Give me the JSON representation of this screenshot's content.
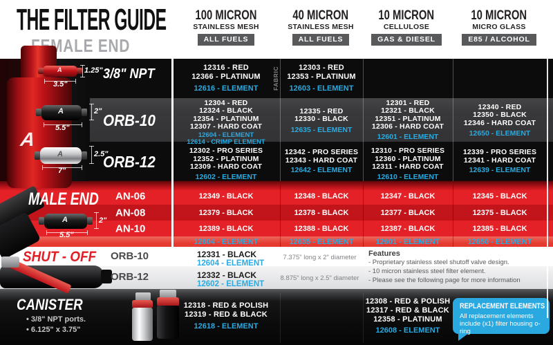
{
  "header": {
    "title": "THE FILTER GUIDE",
    "subtitle": "FEMALE END",
    "columns": [
      {
        "line1": "100 MICRON",
        "line2": "STAINLESS MESH",
        "badge": "ALL FUELS"
      },
      {
        "line1": "40 MICRON",
        "line2": "STAINLESS MESH",
        "badge": "ALL FUELS"
      },
      {
        "line1": "10 MICRON",
        "line2": "CELLULOSE",
        "badge": "GAS & DIESEL"
      },
      {
        "line1": "10 MICRON",
        "line2": "MICRO GLASS",
        "badge": "E85 / ALCOHOL"
      }
    ]
  },
  "female_rows": [
    {
      "label": "3/8\" NPT",
      "dim_d": "1.25\"",
      "dim_l": "3.5\"",
      "cells": [
        {
          "note": "",
          "parts": [
            "12316 - RED",
            "12366 - PLATINUM"
          ],
          "elements": [
            "12616 - ELEMENT"
          ]
        },
        {
          "note": "FABRIC",
          "parts": [
            "12303 - RED",
            "12353 - PLATINUM"
          ],
          "elements": [
            "12603 - ELEMENT"
          ]
        },
        {
          "note": "",
          "parts": [],
          "elements": []
        },
        {
          "note": "",
          "parts": [],
          "elements": []
        }
      ]
    },
    {
      "label": "ORB-10",
      "dim_d": "2\"",
      "dim_l": "5.5\"",
      "cells": [
        {
          "note": "",
          "parts": [
            "12304 - RED",
            "12324 - BLACK",
            "12354 - PLATINUM",
            "12307 - HARD COAT"
          ],
          "elements": [
            "12604 - ELEMENT",
            "12614 - CRIMP ELEMENT"
          ]
        },
        {
          "note": "",
          "parts": [
            "12335 - RED",
            "12330 - BLACK"
          ],
          "elements": [
            "12635 - ELEMENT"
          ]
        },
        {
          "note": "",
          "parts": [
            "12301 - RED",
            "12321 - BLACK",
            "12351 - PLATINUM",
            "12306 - HARD COAT"
          ],
          "elements": [
            "12601 - ELEMENT"
          ]
        },
        {
          "note": "",
          "parts": [
            "12340 - RED",
            "12350 - BLACK",
            "12346 - HARD COAT"
          ],
          "elements": [
            "12650 - ELEMENT"
          ]
        }
      ]
    },
    {
      "label": "ORB-12",
      "dim_d": "2.5\"",
      "dim_l": "7\"",
      "cells": [
        {
          "note": "",
          "parts": [
            "12302 - PRO SERIES",
            "12352 - PLATINUM",
            "12309 - HARD COAT"
          ],
          "elements": [
            "12602 - ELEMENT"
          ]
        },
        {
          "note": "",
          "parts": [
            "12342 - PRO SERIES",
            "12343 - HARD COAT"
          ],
          "elements": [
            "12642 - ELEMENT"
          ]
        },
        {
          "note": "",
          "parts": [
            "12310 - PRO SERIES",
            "12360 - PLATINUM",
            "12311 - HARD COAT"
          ],
          "elements": [
            "12610 - ELEMENT"
          ]
        },
        {
          "note": "",
          "parts": [
            "12339 - PRO SERIES",
            "12341 - HARD COAT"
          ],
          "elements": [
            "12639 - ELEMENT"
          ]
        }
      ]
    }
  ],
  "male_end": {
    "title": "MALE END",
    "dim_d": "2\"",
    "dim_l": "5.5\"",
    "rows": [
      {
        "label": "AN-06",
        "cells": [
          "12349 - BLACK",
          "12348 - BLACK",
          "12347 - BLACK",
          "12345 - BLACK"
        ]
      },
      {
        "label": "AN-08",
        "cells": [
          "12379 - BLACK",
          "12378 - BLACK",
          "12377 - BLACK",
          "12375 - BLACK"
        ]
      },
      {
        "label": "AN-10",
        "cells": [
          "12389 - BLACK",
          "12388 - BLACK",
          "12387 - BLACK",
          "12385 - BLACK"
        ]
      }
    ],
    "elements": [
      "12604 - ELEMENT",
      "12635 - ELEMENT",
      "12601 - ELEMENT",
      "12650 - ELEMENT"
    ]
  },
  "shut_off": {
    "title": "SHUT - OFF",
    "rows": [
      {
        "label": "ORB-10",
        "part": "12331 - BLACK",
        "element": "12604 - ELEMENT",
        "size": "7.375\" long x 2\" diameter"
      },
      {
        "label": "ORB-12",
        "part": "12332 - BLACK",
        "element": "12602 - ELEMENT",
        "size": "8.875\" long x 2.5\" diameter"
      }
    ],
    "features": {
      "title": "Features",
      "items": [
        "- Proprietary stainless steel shutoff valve design.",
        "- 10 micron stainless steel filter element.",
        "- Please see the following page for more information"
      ]
    }
  },
  "canister": {
    "title": "CANISTER",
    "bullets": [
      "• 3/8\" NPT ports.",
      "• 6.125\" x 3.75\""
    ],
    "col1": {
      "parts": [
        "12318 - RED & POLISH",
        "12319 - RED & BLACK"
      ],
      "elements": [
        "12618 - ELEMENT"
      ]
    },
    "col3": {
      "parts": [
        "12308 - RED & POLISH",
        "12317 - RED & BLACK",
        "12358 - PLATINUM"
      ],
      "elements": [
        "12608 - ELEMENT"
      ]
    },
    "callout": {
      "title": "REPLACEMENT ELEMENTS",
      "body": "All replacement elements include (x1) filter housing o-ring"
    }
  },
  "colors": {
    "accent_blue": "#29ABE2",
    "brand_red": "#E32126",
    "badge_gray": "#58595B",
    "callout_blue": "#29A9E0"
  }
}
